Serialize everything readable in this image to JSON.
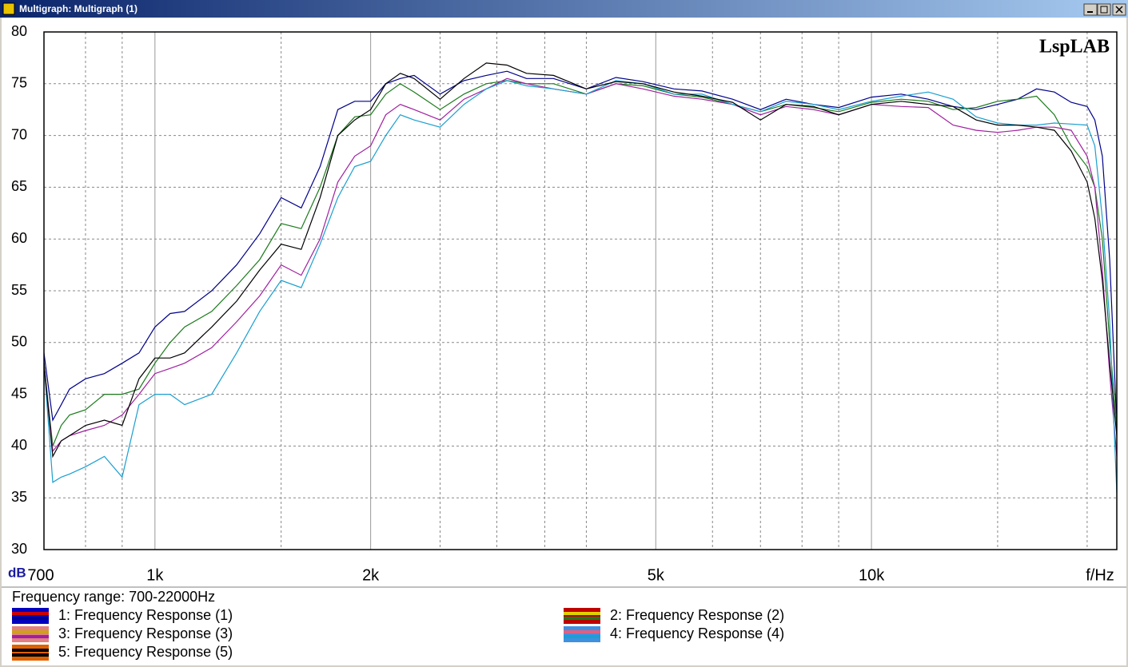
{
  "window_title": "Multigraph: Multigraph (1)",
  "chart_data": {
    "type": "line",
    "watermark": "LspLAB",
    "x_label": "f/Hz",
    "y_label": "dB",
    "range_note": "Frequency range: 700-22000Hz",
    "xscale": "log",
    "grid": true,
    "xlim": [
      700,
      22000
    ],
    "ylim": [
      30,
      80
    ],
    "xticks": [
      700,
      {
        "value": 1000,
        "label": "1k"
      },
      {
        "value": 2000,
        "label": "2k"
      },
      {
        "value": 5000,
        "label": "5k"
      },
      {
        "value": 10000,
        "label": "10k"
      }
    ],
    "xminor_ticks": [
      800,
      900,
      1500,
      2500,
      3000,
      3500,
      4000,
      6000,
      7000,
      8000,
      9000,
      15000,
      20000
    ],
    "yticks": [
      30,
      35,
      40,
      45,
      50,
      55,
      60,
      65,
      70,
      75,
      80
    ],
    "x": [
      700,
      720,
      740,
      760,
      800,
      850,
      900,
      950,
      1000,
      1050,
      1100,
      1200,
      1300,
      1400,
      1500,
      1600,
      1700,
      1800,
      1900,
      2000,
      2100,
      2200,
      2300,
      2500,
      2700,
      2900,
      3100,
      3300,
      3600,
      4000,
      4400,
      4800,
      5300,
      5800,
      6400,
      7000,
      7600,
      8300,
      9000,
      10000,
      11000,
      12000,
      13000,
      14000,
      15000,
      16000,
      17000,
      18000,
      19000,
      20000,
      20500,
      21000,
      21500,
      22000
    ],
    "series": [
      {
        "name": "1: Frequency Response (1)",
        "color": "#00008b",
        "values": [
          49,
          42.5,
          44,
          45.5,
          46.5,
          47,
          48,
          49,
          51.5,
          52.8,
          53,
          55,
          57.5,
          60.5,
          64,
          63,
          67,
          72.5,
          73.3,
          73.3,
          75,
          75.5,
          75.8,
          74,
          75.3,
          75.8,
          76.2,
          75.5,
          75.5,
          74.5,
          75.6,
          75.2,
          74.5,
          74.3,
          73.5,
          72.5,
          73.5,
          73,
          72.7,
          73.7,
          74,
          73.5,
          72.8,
          72.5,
          73,
          73.5,
          74.5,
          74.2,
          73.2,
          72.8,
          71.5,
          68,
          58,
          42
        ]
      },
      {
        "name": "2: Frequency Response (2)",
        "color": "#1b7a1b",
        "values": [
          48,
          40,
          42,
          43,
          43.5,
          45,
          45,
          45.5,
          48,
          50,
          51.5,
          53,
          55.5,
          58,
          61.5,
          61,
          65,
          70,
          71.8,
          72,
          74,
          75,
          74.2,
          72.5,
          74,
          75,
          75.3,
          75,
          75,
          74,
          75,
          74.8,
          74,
          73.7,
          73,
          72.3,
          73,
          72.7,
          72.3,
          73.2,
          73.5,
          73.3,
          72.5,
          72.7,
          73.3,
          73.5,
          73.8,
          72,
          69,
          67,
          65,
          60,
          50,
          42
        ]
      },
      {
        "name": "3: Frequency Response (3)",
        "color": "#a020a0",
        "values": [
          48,
          39.5,
          40.5,
          41,
          41.5,
          42,
          43,
          45,
          47,
          47.5,
          48,
          49.5,
          52,
          54.5,
          57.5,
          56.5,
          60,
          65.5,
          68,
          69,
          72,
          73,
          72.5,
          71.5,
          73.5,
          74.5,
          75.5,
          75,
          74.5,
          74,
          75,
          74.5,
          73.8,
          73.5,
          73,
          72,
          72.8,
          72.5,
          72,
          73,
          72.8,
          72.7,
          71,
          70.5,
          70.3,
          70.5,
          70.8,
          70.8,
          70.5,
          68,
          65,
          57,
          47,
          39
        ]
      },
      {
        "name": "4: Frequency Response (4)",
        "color": "#1a9fd0",
        "values": [
          48,
          36.5,
          37,
          37.3,
          38,
          39,
          37,
          44,
          45,
          45,
          44,
          45,
          49,
          53,
          56,
          55.3,
          59.5,
          64,
          67,
          67.5,
          70,
          72,
          71.5,
          70.8,
          73,
          74.5,
          75.3,
          74.8,
          74.5,
          74,
          75.3,
          75,
          74,
          74,
          73,
          72.3,
          73.3,
          73,
          72.5,
          73.3,
          73.8,
          74.2,
          73.5,
          71.8,
          71.2,
          71,
          71,
          71.2,
          71.1,
          71,
          69,
          62,
          52,
          35.5
        ]
      },
      {
        "name": "5: Frequency Response (5)",
        "color": "#000000",
        "values": [
          48,
          39,
          40.5,
          41,
          42,
          42.5,
          42,
          46.5,
          48.5,
          48.5,
          49,
          51.5,
          54,
          57,
          59.5,
          59,
          64,
          70,
          71.5,
          72.5,
          75,
          76,
          75.5,
          73.5,
          75.5,
          77,
          76.8,
          76,
          75.8,
          74.5,
          75.2,
          75,
          74.2,
          73.8,
          73.2,
          71.5,
          73,
          72.8,
          72,
          73,
          73.3,
          73,
          72.8,
          71.5,
          71,
          71,
          70.8,
          70.5,
          68.5,
          65.5,
          62,
          56,
          48,
          41
        ]
      }
    ]
  }
}
